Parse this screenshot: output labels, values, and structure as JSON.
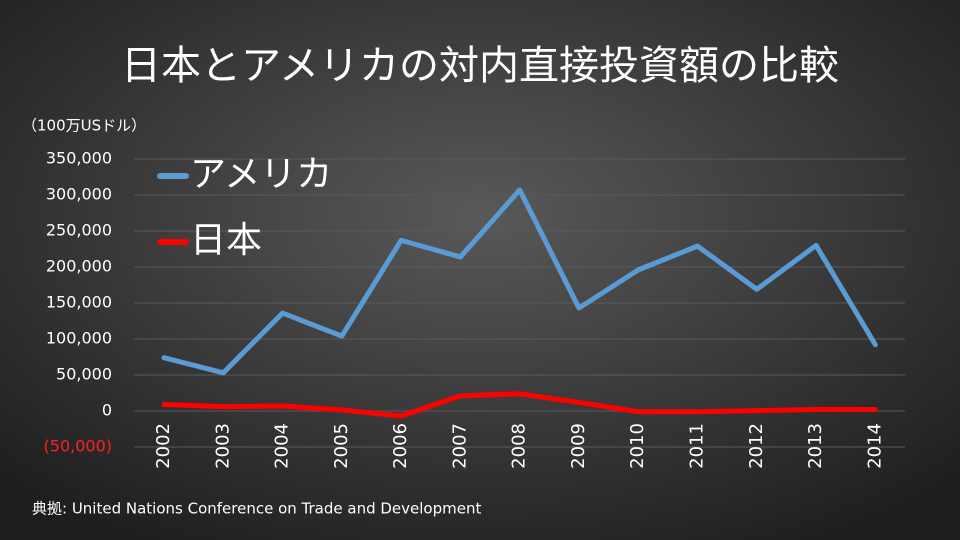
{
  "chart_data": {
    "type": "line",
    "title": "日本とアメリカの対内直接投資額の比較",
    "y_label": "（100万USドル）",
    "source": "典拠: United Nations Conference on Trade and Development",
    "categories": [
      "2002",
      "2003",
      "2004",
      "2005",
      "2006",
      "2007",
      "2008",
      "2009",
      "2010",
      "2011",
      "2012",
      "2013",
      "2014"
    ],
    "series": [
      {
        "name": "アメリカ",
        "color": "#5b9bd5",
        "values": [
          74000,
          53000,
          136000,
          104000,
          237000,
          214000,
          307000,
          143000,
          196000,
          229000,
          169000,
          230000,
          92000
        ]
      },
      {
        "name": "日本",
        "color": "#ff0000",
        "values": [
          9000,
          6000,
          7000,
          1500,
          -7000,
          21000,
          24000,
          12000,
          -1000,
          -1000,
          500,
          2000,
          2000
        ]
      }
    ],
    "ylim": [
      -50000,
      350000
    ],
    "yticks": [
      {
        "value": -50000,
        "label": "(50,000)"
      },
      0,
      {
        "value": 50000,
        "label": "50,000"
      },
      {
        "value": 100000,
        "label": "100,000"
      },
      {
        "value": 150000,
        "label": "150,000"
      },
      {
        "value": 200000,
        "label": "200,000"
      },
      {
        "value": 250000,
        "label": "250,000"
      },
      {
        "value": 300000,
        "label": "300,000"
      },
      {
        "value": 350000,
        "label": "350,000"
      }
    ],
    "grid": true,
    "legend": "upper left"
  }
}
